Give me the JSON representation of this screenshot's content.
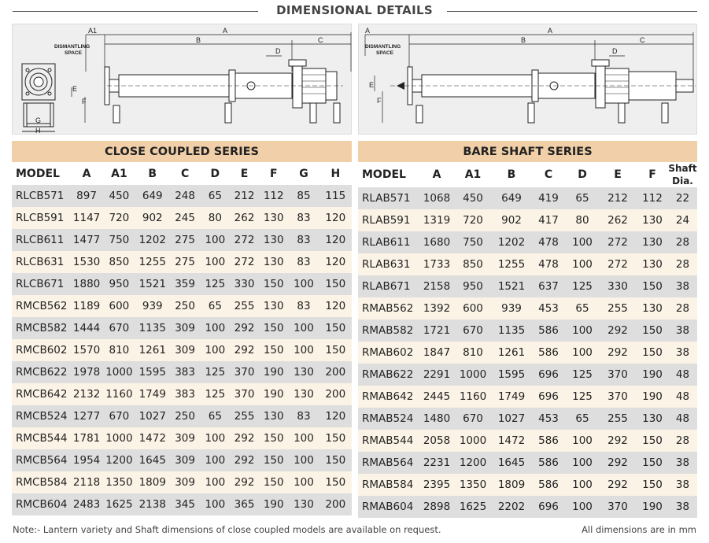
{
  "title": "DIMENSIONAL DETAILS",
  "diagram_left": {
    "labels": {
      "a1": "A1",
      "a": "A",
      "b": "B",
      "c": "C",
      "d": "D",
      "e": "E",
      "f": "F",
      "g": "G",
      "h": "H",
      "dismantling1": "DISMANTLING",
      "dismantling2": "SPACE"
    }
  },
  "diagram_right": {
    "labels": {
      "a": "A",
      "b": "B",
      "c": "C",
      "d": "D",
      "e": "E",
      "f": "F",
      "dismantling1": "DISMANTLING",
      "dismantling2": "SPACE"
    }
  },
  "close_coupled": {
    "title": "CLOSE COUPLED SERIES",
    "columns": [
      "MODEL",
      "A",
      "A1",
      "B",
      "C",
      "D",
      "E",
      "F",
      "G",
      "H"
    ],
    "rows": [
      [
        "RLCB571",
        "897",
        "450",
        "649",
        "248",
        "65",
        "212",
        "112",
        "85",
        "115"
      ],
      [
        "RLCB591",
        "1147",
        "720",
        "902",
        "245",
        "80",
        "262",
        "130",
        "83",
        "120"
      ],
      [
        "RLCB611",
        "1477",
        "750",
        "1202",
        "275",
        "100",
        "272",
        "130",
        "83",
        "120"
      ],
      [
        "RLCB631",
        "1530",
        "850",
        "1255",
        "275",
        "100",
        "272",
        "130",
        "83",
        "120"
      ],
      [
        "RLCB671",
        "1880",
        "950",
        "1521",
        "359",
        "125",
        "330",
        "150",
        "100",
        "150"
      ],
      [
        "RMCB562",
        "1189",
        "600",
        "939",
        "250",
        "65",
        "255",
        "130",
        "83",
        "120"
      ],
      [
        "RMCB582",
        "1444",
        "670",
        "1135",
        "309",
        "100",
        "292",
        "150",
        "100",
        "150"
      ],
      [
        "RMCB602",
        "1570",
        "810",
        "1261",
        "309",
        "100",
        "292",
        "150",
        "100",
        "150"
      ],
      [
        "RMCB622",
        "1978",
        "1000",
        "1595",
        "383",
        "125",
        "370",
        "190",
        "130",
        "200"
      ],
      [
        "RMCB642",
        "2132",
        "1160",
        "1749",
        "383",
        "125",
        "370",
        "190",
        "130",
        "200"
      ],
      [
        "RMCB524",
        "1277",
        "670",
        "1027",
        "250",
        "65",
        "255",
        "130",
        "83",
        "120"
      ],
      [
        "RMCB544",
        "1781",
        "1000",
        "1472",
        "309",
        "100",
        "292",
        "150",
        "100",
        "150"
      ],
      [
        "RMCB564",
        "1954",
        "1200",
        "1645",
        "309",
        "100",
        "292",
        "150",
        "100",
        "150"
      ],
      [
        "RMCB584",
        "2118",
        "1350",
        "1809",
        "309",
        "100",
        "292",
        "150",
        "100",
        "150"
      ],
      [
        "RMCB604",
        "2483",
        "1625",
        "2138",
        "345",
        "100",
        "365",
        "190",
        "130",
        "200"
      ]
    ]
  },
  "bare_shaft": {
    "title": "BARE SHAFT SERIES",
    "columns": [
      "MODEL",
      "A",
      "A1",
      "B",
      "C",
      "D",
      "E",
      "F"
    ],
    "shaft_col_1": "Shaft",
    "shaft_col_2": "Dia.",
    "rows": [
      [
        "RLAB571",
        "1068",
        "450",
        "649",
        "419",
        "65",
        "212",
        "112",
        "22"
      ],
      [
        "RLAB591",
        "1319",
        "720",
        "902",
        "417",
        "80",
        "262",
        "130",
        "24"
      ],
      [
        "RLAB611",
        "1680",
        "750",
        "1202",
        "478",
        "100",
        "272",
        "130",
        "28"
      ],
      [
        "RLAB631",
        "1733",
        "850",
        "1255",
        "478",
        "100",
        "272",
        "130",
        "28"
      ],
      [
        "RLAB671",
        "2158",
        "950",
        "1521",
        "637",
        "125",
        "330",
        "150",
        "38"
      ],
      [
        "RMAB562",
        "1392",
        "600",
        "939",
        "453",
        "65",
        "255",
        "130",
        "28"
      ],
      [
        "RMAB582",
        "1721",
        "670",
        "1135",
        "586",
        "100",
        "292",
        "150",
        "38"
      ],
      [
        "RMAB602",
        "1847",
        "810",
        "1261",
        "586",
        "100",
        "292",
        "150",
        "38"
      ],
      [
        "RMAB622",
        "2291",
        "1000",
        "1595",
        "696",
        "125",
        "370",
        "190",
        "48"
      ],
      [
        "RMAB642",
        "2445",
        "1160",
        "1749",
        "696",
        "125",
        "370",
        "190",
        "48"
      ],
      [
        "RMAB524",
        "1480",
        "670",
        "1027",
        "453",
        "65",
        "255",
        "130",
        "48"
      ],
      [
        "RMAB544",
        "2058",
        "1000",
        "1472",
        "586",
        "100",
        "292",
        "150",
        "28"
      ],
      [
        "RMAB564",
        "2231",
        "1200",
        "1645",
        "586",
        "100",
        "292",
        "150",
        "38"
      ],
      [
        "RMAB584",
        "2395",
        "1350",
        "1809",
        "586",
        "100",
        "292",
        "150",
        "38"
      ],
      [
        "RMAB604",
        "2898",
        "1625",
        "2202",
        "696",
        "100",
        "370",
        "190",
        "38"
      ]
    ]
  },
  "note": "Note:-  Lantern variety and Shaft dimensions of close coupled models are available on request.",
  "units": "All dimensions are in mm"
}
